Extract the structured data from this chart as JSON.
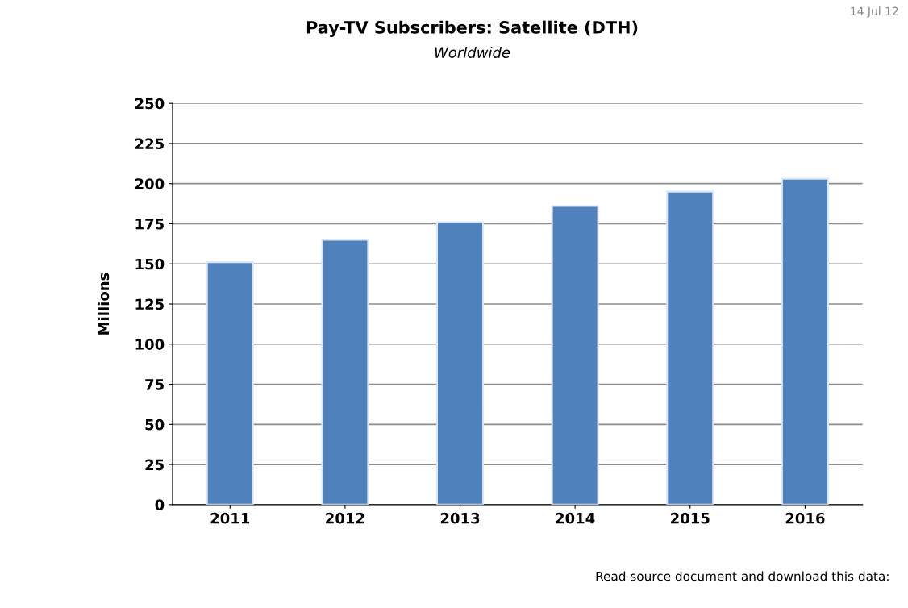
{
  "chart_data": {
    "type": "bar",
    "title": "Pay-TV Subscribers: Satellite (DTH)",
    "subtitle": "Worldwide",
    "ylabel": "Millions",
    "categories": [
      "2011",
      "2012",
      "2013",
      "2014",
      "2015",
      "2016"
    ],
    "values": [
      151,
      165,
      176,
      186,
      195,
      203
    ],
    "color": "#4f81bd",
    "ylim": [
      0,
      250
    ],
    "yticks": [
      0,
      25,
      50,
      75,
      100,
      125,
      150,
      175,
      200,
      225,
      250
    ],
    "grid": "y",
    "annotations": [
      "14 Jul 12",
      "Read source document and download this data:"
    ]
  }
}
